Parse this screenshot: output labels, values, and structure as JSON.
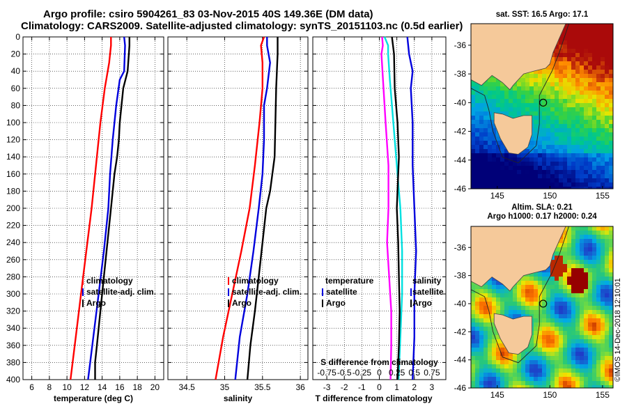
{
  "header": {
    "title_line1": "Argo profile: csiro 5904261_83 03-Nov-2015 40S 149.36E (DM data)",
    "title_line2": "Climatology: CARS2009. Satellite-adjusted climatology: synTS_20151103.nc (0.5d earlier)"
  },
  "colors": {
    "climatology": "#ff0000",
    "satellite": "#0000dd",
    "argo": "#000000",
    "t_difference": "#00e0e0",
    "s_difference": "#ff00ff",
    "land": "#f5c99a"
  },
  "chart_data": [
    {
      "type": "line",
      "title": "",
      "xlabel": "temperature (deg C)",
      "ylabel": "",
      "xlim": [
        5,
        21
      ],
      "ylim": [
        400,
        0
      ],
      "xticks": [
        6,
        8,
        10,
        12,
        14,
        16,
        18,
        20
      ],
      "yticks": [
        0,
        20,
        40,
        60,
        80,
        100,
        120,
        140,
        160,
        180,
        200,
        220,
        240,
        260,
        280,
        300,
        320,
        340,
        360,
        380,
        400
      ],
      "grid": true,
      "legend": [
        "climatology",
        "satellite-adj. clim.",
        "Argo"
      ],
      "series": [
        {
          "name": "climatology",
          "color": "red",
          "depth": [
            0,
            10,
            30,
            60,
            100,
            150,
            200,
            250,
            300,
            350,
            400
          ],
          "values": [
            15.0,
            15.0,
            14.8,
            14.3,
            13.8,
            13.3,
            12.8,
            12.2,
            11.6,
            11.0,
            10.4
          ]
        },
        {
          "name": "satellite-adj. clim.",
          "color": "blue",
          "depth": [
            0,
            10,
            40,
            50,
            80,
            120,
            160,
            200,
            250,
            300,
            350,
            400
          ],
          "values": [
            16.5,
            16.6,
            16.5,
            16.0,
            15.6,
            15.2,
            14.9,
            14.7,
            14.2,
            13.6,
            13.0,
            12.4
          ]
        },
        {
          "name": "Argo",
          "color": "black",
          "depth": [
            0,
            10,
            40,
            60,
            80,
            100,
            120,
            140,
            160,
            180,
            200,
            240,
            280,
            320,
            360,
            380,
            400
          ],
          "values": [
            17.1,
            17.1,
            16.9,
            16.4,
            16.2,
            16.0,
            15.9,
            15.7,
            15.4,
            15.2,
            15.0,
            14.6,
            14.2,
            13.8,
            13.4,
            13.2,
            13.2
          ]
        }
      ]
    },
    {
      "type": "line",
      "title": "",
      "xlabel": "salinity",
      "ylabel": "",
      "xlim": [
        34.25,
        36.1
      ],
      "ylim": [
        400,
        0
      ],
      "xticks": [
        34.5,
        35,
        35.5,
        36
      ],
      "grid": true,
      "legend": [
        "climatology",
        "satellite-adj. clim.",
        "Argo"
      ],
      "series": [
        {
          "name": "climatology",
          "color": "red",
          "depth": [
            0,
            10,
            30,
            60,
            100,
            150,
            200,
            250,
            300,
            350,
            400
          ],
          "values": [
            35.52,
            35.48,
            35.5,
            35.5,
            35.46,
            35.4,
            35.33,
            35.22,
            35.1,
            34.98,
            34.88
          ]
        },
        {
          "name": "satellite-adj. clim.",
          "color": "blue",
          "depth": [
            0,
            10,
            30,
            60,
            80,
            120,
            160,
            200,
            250,
            300,
            350,
            400
          ],
          "values": [
            35.56,
            35.56,
            35.6,
            35.56,
            35.52,
            35.52,
            35.5,
            35.45,
            35.38,
            35.3,
            35.2,
            35.14
          ]
        },
        {
          "name": "Argo",
          "color": "black",
          "depth": [
            0,
            20,
            60,
            100,
            140,
            180,
            200,
            240,
            280,
            320,
            360,
            400
          ],
          "values": [
            35.7,
            35.7,
            35.68,
            35.67,
            35.66,
            35.6,
            35.55,
            35.5,
            35.45,
            35.4,
            35.34,
            35.3
          ]
        }
      ]
    },
    {
      "type": "line",
      "title": "",
      "xlabel": "T difference from climatology",
      "xlabel_top": "S difference from climatology",
      "ylabel": "",
      "xlim": [
        -3.8,
        3.8
      ],
      "ylim": [
        400,
        0
      ],
      "xticks": [
        -3,
        -2,
        -1,
        0,
        1,
        2,
        3
      ],
      "xticks_top": [
        "-0.75",
        "-0.5",
        "-0.25",
        "0",
        "0.25",
        "0.5",
        "0.75"
      ],
      "grid": true,
      "legend_left": [
        "temperature",
        "satellite",
        "Argo"
      ],
      "legend_right": [
        "salinity",
        "satellite",
        "Argo"
      ],
      "series": [
        {
          "name": "temperature satellite",
          "color": "cyan",
          "depth": [
            0,
            10,
            20,
            50,
            100,
            150,
            200,
            250,
            300,
            350,
            400
          ],
          "values": [
            0.3,
            0.5,
            0.5,
            0.6,
            0.8,
            1.0,
            1.2,
            1.3,
            1.3,
            1.2,
            1.1
          ]
        },
        {
          "name": "salinity satellite",
          "color": "magenta",
          "depth": [
            0,
            10,
            20,
            60,
            100,
            150,
            200,
            240,
            280,
            320,
            360,
            400
          ],
          "values": [
            0.04,
            0.05,
            0.03,
            0.06,
            0.09,
            0.13,
            0.13,
            0.11,
            0.14,
            0.17,
            0.17,
            0.16
          ]
        },
        {
          "name": "temperature Argo",
          "color": "blue",
          "depth": [
            0,
            20,
            40,
            60,
            100,
            150,
            200,
            250,
            300,
            350,
            400
          ],
          "values": [
            1.6,
            1.7,
            1.9,
            1.8,
            1.9,
            1.9,
            2.0,
            2.1,
            2.0,
            2.0,
            1.9
          ]
        },
        {
          "name": "salinity Argo",
          "color": "black",
          "depth": [
            0,
            20,
            60,
            100,
            140,
            180,
            200,
            240,
            280,
            320,
            360,
            400
          ],
          "values": [
            0.18,
            0.21,
            0.22,
            0.26,
            0.28,
            0.26,
            0.25,
            0.27,
            0.28,
            0.29,
            0.28,
            0.26
          ]
        }
      ]
    },
    {
      "type": "heatmap",
      "title": "sat. SST: 16.5 Argo: 17.1",
      "xticks": [
        145,
        150,
        155
      ],
      "yticks": [
        -36,
        -38,
        -40,
        -42,
        -44,
        -46
      ],
      "xlim": [
        142.5,
        156
      ],
      "ylim": [
        -46,
        -34.5
      ],
      "profile_point": {
        "lon": 149.36,
        "lat": -40
      }
    },
    {
      "type": "heatmap",
      "title": "Altim. SLA: 0.21",
      "subtitle": "Argo h1000: 0.17 h2000: 0.24",
      "xticks": [
        145,
        150,
        155
      ],
      "yticks": [
        -36,
        -38,
        -40,
        -42,
        -44,
        -46
      ],
      "xlim": [
        142.5,
        156
      ],
      "ylim": [
        -46,
        -34.5
      ],
      "profile_point": {
        "lon": 149.36,
        "lat": -40
      }
    }
  ],
  "footer": {
    "credit": "©IMOS 14-Dec-2018 12:10:01"
  }
}
